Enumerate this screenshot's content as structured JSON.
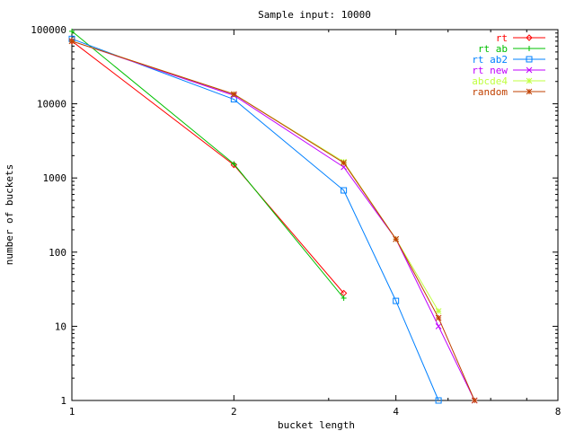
{
  "chart_data": {
    "type": "line",
    "title": "Sample input: 10000",
    "xlabel": "bucket length",
    "ylabel": "number of buckets",
    "x_scale": "log2",
    "y_scale": "log10",
    "xlim": [
      1,
      8
    ],
    "ylim": [
      1,
      100000
    ],
    "x_ticks": [
      1,
      2,
      4,
      8
    ],
    "x_tick_labels": [
      "1",
      "2",
      "4",
      "8"
    ],
    "y_ticks": [
      1,
      10,
      100,
      1000,
      10000,
      100000
    ],
    "y_tick_labels": [
      "1",
      "10",
      "100",
      "1000",
      "10000",
      "100000"
    ],
    "grid": false,
    "legend_position": "top-right",
    "series": [
      {
        "name": "rt",
        "color": "#ff0000",
        "marker": "diamond",
        "x": [
          1,
          2,
          3.2
        ],
        "y": [
          70000,
          1500,
          28
        ]
      },
      {
        "name": "rt ab",
        "color": "#00c000",
        "marker": "plus",
        "x": [
          1,
          2,
          3.2
        ],
        "y": [
          95000,
          1550,
          24
        ]
      },
      {
        "name": "rt ab2",
        "color": "#0080ff",
        "marker": "square",
        "x": [
          1,
          2,
          3.2,
          4,
          4.8
        ],
        "y": [
          75000,
          11500,
          680,
          22,
          1
        ]
      },
      {
        "name": "rt new",
        "color": "#c000ff",
        "marker": "cross",
        "x": [
          1,
          2,
          3.2,
          4,
          4.8,
          5.6
        ],
        "y": [
          70000,
          13000,
          1400,
          150,
          10,
          1
        ]
      },
      {
        "name": "abcde4",
        "color": "#c0ff40",
        "marker": "asterisk",
        "x": [
          1,
          2,
          3.2,
          4,
          4.8
        ],
        "y": [
          70000,
          13500,
          1650,
          150,
          16
        ]
      },
      {
        "name": "random",
        "color": "#c04000",
        "marker": "asterisk",
        "x": [
          1,
          2,
          3.2,
          4,
          4.8,
          5.6
        ],
        "y": [
          70000,
          13500,
          1600,
          150,
          13,
          1
        ]
      }
    ]
  }
}
